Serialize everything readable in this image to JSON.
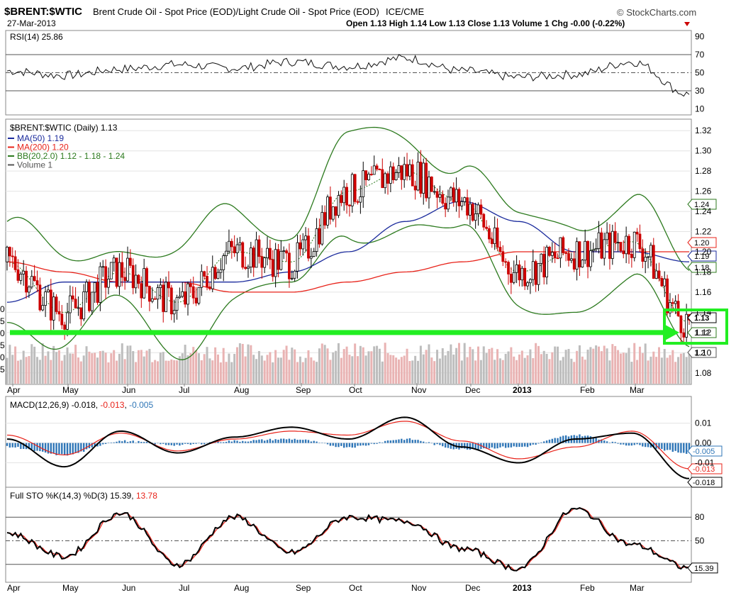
{
  "header": {
    "symbol": "$BRENT:$WTIC",
    "description": "Brent Crude Oil - Spot Price (EOD)/Light Crude Oil - Spot Price (EOD)",
    "exchange": "ICE/CME",
    "date": "27-Mar-2013",
    "source": "© StockCharts.com",
    "ohlc_text": "Open 1.13  High 1.14  Low 1.13  Close 1.13  Volume 1  Chg -0.00 (-0.22%)"
  },
  "colors": {
    "price_up": "#000000",
    "price_down": "#cc0000",
    "ma50": "#1a2a9c",
    "ma200": "#e8231a",
    "bollinger": "#2c7a1e",
    "volume": "#b7b7b7",
    "macd_hist": "#2f76b7",
    "signal": "#e8231a",
    "highlight": "#22ee22"
  },
  "panels": {
    "rsi": {
      "label": "RSI(14) 25.86",
      "last_value": "25.86",
      "ticks": [
        "90",
        "70",
        "50",
        "30",
        "10"
      ]
    },
    "price": {
      "label": "$BRENT:$WTIC (Daily) 1.13",
      "legend": [
        {
          "text": "MA(50) 1.19",
          "color": "#1a2a9c"
        },
        {
          "text": "MA(200) 1.20",
          "color": "#e8231a"
        },
        {
          "text": "BB(20,2.0) 1.12 - 1.18 - 1.24",
          "color": "#2c7a1e"
        },
        {
          "text": "Volume 1",
          "color": "#555555"
        }
      ],
      "ticks": [
        "1.32",
        "1.30",
        "1.28",
        "1.26",
        "1.24",
        "1.22",
        "1.20",
        "1.18",
        "1.16",
        "1.14",
        "1.12",
        "1.10",
        "1.08"
      ],
      "value_boxes": [
        "1.24",
        "1.20",
        "1.19",
        "1.18",
        "1.13",
        "1.12",
        "1.2"
      ],
      "left_cut_labels": [
        "0",
        "5",
        "0",
        "5",
        "0",
        "5"
      ]
    },
    "macd": {
      "label_prefix": "MACD(12,26,9)",
      "macd_value": "-0.018",
      "signal_value": "-0.013",
      "hist_value": "-0.005",
      "ticks": [
        "0.01",
        "0.00",
        "-0.01"
      ],
      "value_boxes": [
        "-0.005",
        "-0.013",
        "-0.018"
      ]
    },
    "stoch": {
      "label_prefix": "Full STO %K(14,3) %D(3)",
      "k_value": "15.39",
      "d_value": "13.78",
      "ticks": [
        "80",
        "50"
      ],
      "value_box": "15.39"
    }
  },
  "x_axis_labels": [
    "Apr",
    "May",
    "Jun",
    "Jul",
    "Aug",
    "Sep",
    "Oct",
    "Nov",
    "Dec",
    "2013",
    "Feb",
    "Mar"
  ],
  "chart_data": [
    {
      "type": "line",
      "title": "RSI(14)",
      "x": [
        "Apr",
        "May",
        "Jun",
        "Jul",
        "Aug",
        "Sep",
        "Oct",
        "Nov",
        "Dec",
        "2013",
        "Feb",
        "Mar",
        "Mar-27"
      ],
      "series": [
        {
          "name": "RSI(14)",
          "values": [
            52,
            47,
            54,
            59,
            55,
            62,
            57,
            66,
            52,
            45,
            48,
            62,
            26
          ]
        }
      ],
      "ylim": [
        5,
        95
      ],
      "reference_lines": [
        70,
        50,
        30
      ]
    },
    {
      "type": "line",
      "title": "$BRENT:$WTIC (Daily)",
      "x": [
        "Apr",
        "May",
        "Jun",
        "Jul",
        "Aug",
        "Sep",
        "Oct",
        "Nov",
        "Dec",
        "2013",
        "Feb",
        "Mar",
        "Mar-27"
      ],
      "series": [
        {
          "name": "$BRENT:$WTIC",
          "values": [
            1.19,
            1.14,
            1.18,
            1.15,
            1.2,
            1.19,
            1.26,
            1.28,
            1.25,
            1.18,
            1.2,
            1.21,
            1.13
          ]
        },
        {
          "name": "MA(50)",
          "values": [
            1.15,
            1.17,
            1.17,
            1.17,
            1.17,
            1.18,
            1.2,
            1.23,
            1.25,
            1.23,
            1.2,
            1.2,
            1.19
          ]
        },
        {
          "name": "MA(200)",
          "values": [
            1.19,
            1.18,
            1.17,
            1.17,
            1.16,
            1.16,
            1.17,
            1.18,
            1.19,
            1.2,
            1.2,
            1.2,
            1.2
          ]
        }
      ],
      "ylim": [
        1.07,
        1.33
      ],
      "ylog": false,
      "annotations": [
        "horizontal support line at 1.12",
        "box around latest close 1.12-1.13"
      ]
    },
    {
      "type": "line",
      "title": "MACD(12,26,9)",
      "x": [
        "Apr",
        "May",
        "Jun",
        "Jul",
        "Aug",
        "Sep",
        "Oct",
        "Nov",
        "Dec",
        "2013",
        "Feb",
        "Mar",
        "Mar-27"
      ],
      "series": [
        {
          "name": "MACD",
          "values": [
            0.002,
            -0.012,
            0.006,
            -0.005,
            0.003,
            0.008,
            0.002,
            0.013,
            -0.002,
            -0.01,
            0.002,
            0.005,
            -0.018
          ]
        },
        {
          "name": "Signal",
          "values": [
            0.004,
            -0.006,
            0.005,
            -0.004,
            0.002,
            0.006,
            0.004,
            0.011,
            0.001,
            -0.008,
            -0.002,
            0.006,
            -0.013
          ]
        },
        {
          "name": "Histogram",
          "values": [
            -0.002,
            -0.006,
            0.001,
            -0.001,
            0.001,
            0.002,
            -0.002,
            0.002,
            -0.003,
            -0.002,
            0.004,
            -0.001,
            -0.005
          ]
        }
      ],
      "ylim": [
        -0.022,
        0.016
      ]
    },
    {
      "type": "line",
      "title": "Full STO %K(14,3) %D(3)",
      "x": [
        "Apr",
        "May",
        "Jun",
        "Jul",
        "Aug",
        "Sep",
        "Oct",
        "Nov",
        "Dec",
        "2013",
        "Feb",
        "Mar",
        "Mar-27"
      ],
      "series": [
        {
          "name": "%K",
          "values": [
            60,
            30,
            85,
            20,
            80,
            35,
            80,
            75,
            40,
            15,
            90,
            45,
            15.39
          ]
        },
        {
          "name": "%D",
          "values": [
            58,
            32,
            82,
            22,
            78,
            38,
            78,
            72,
            42,
            18,
            86,
            48,
            13.78
          ]
        }
      ],
      "ylim": [
        0,
        100
      ],
      "reference_lines": [
        80,
        50,
        20
      ]
    }
  ]
}
